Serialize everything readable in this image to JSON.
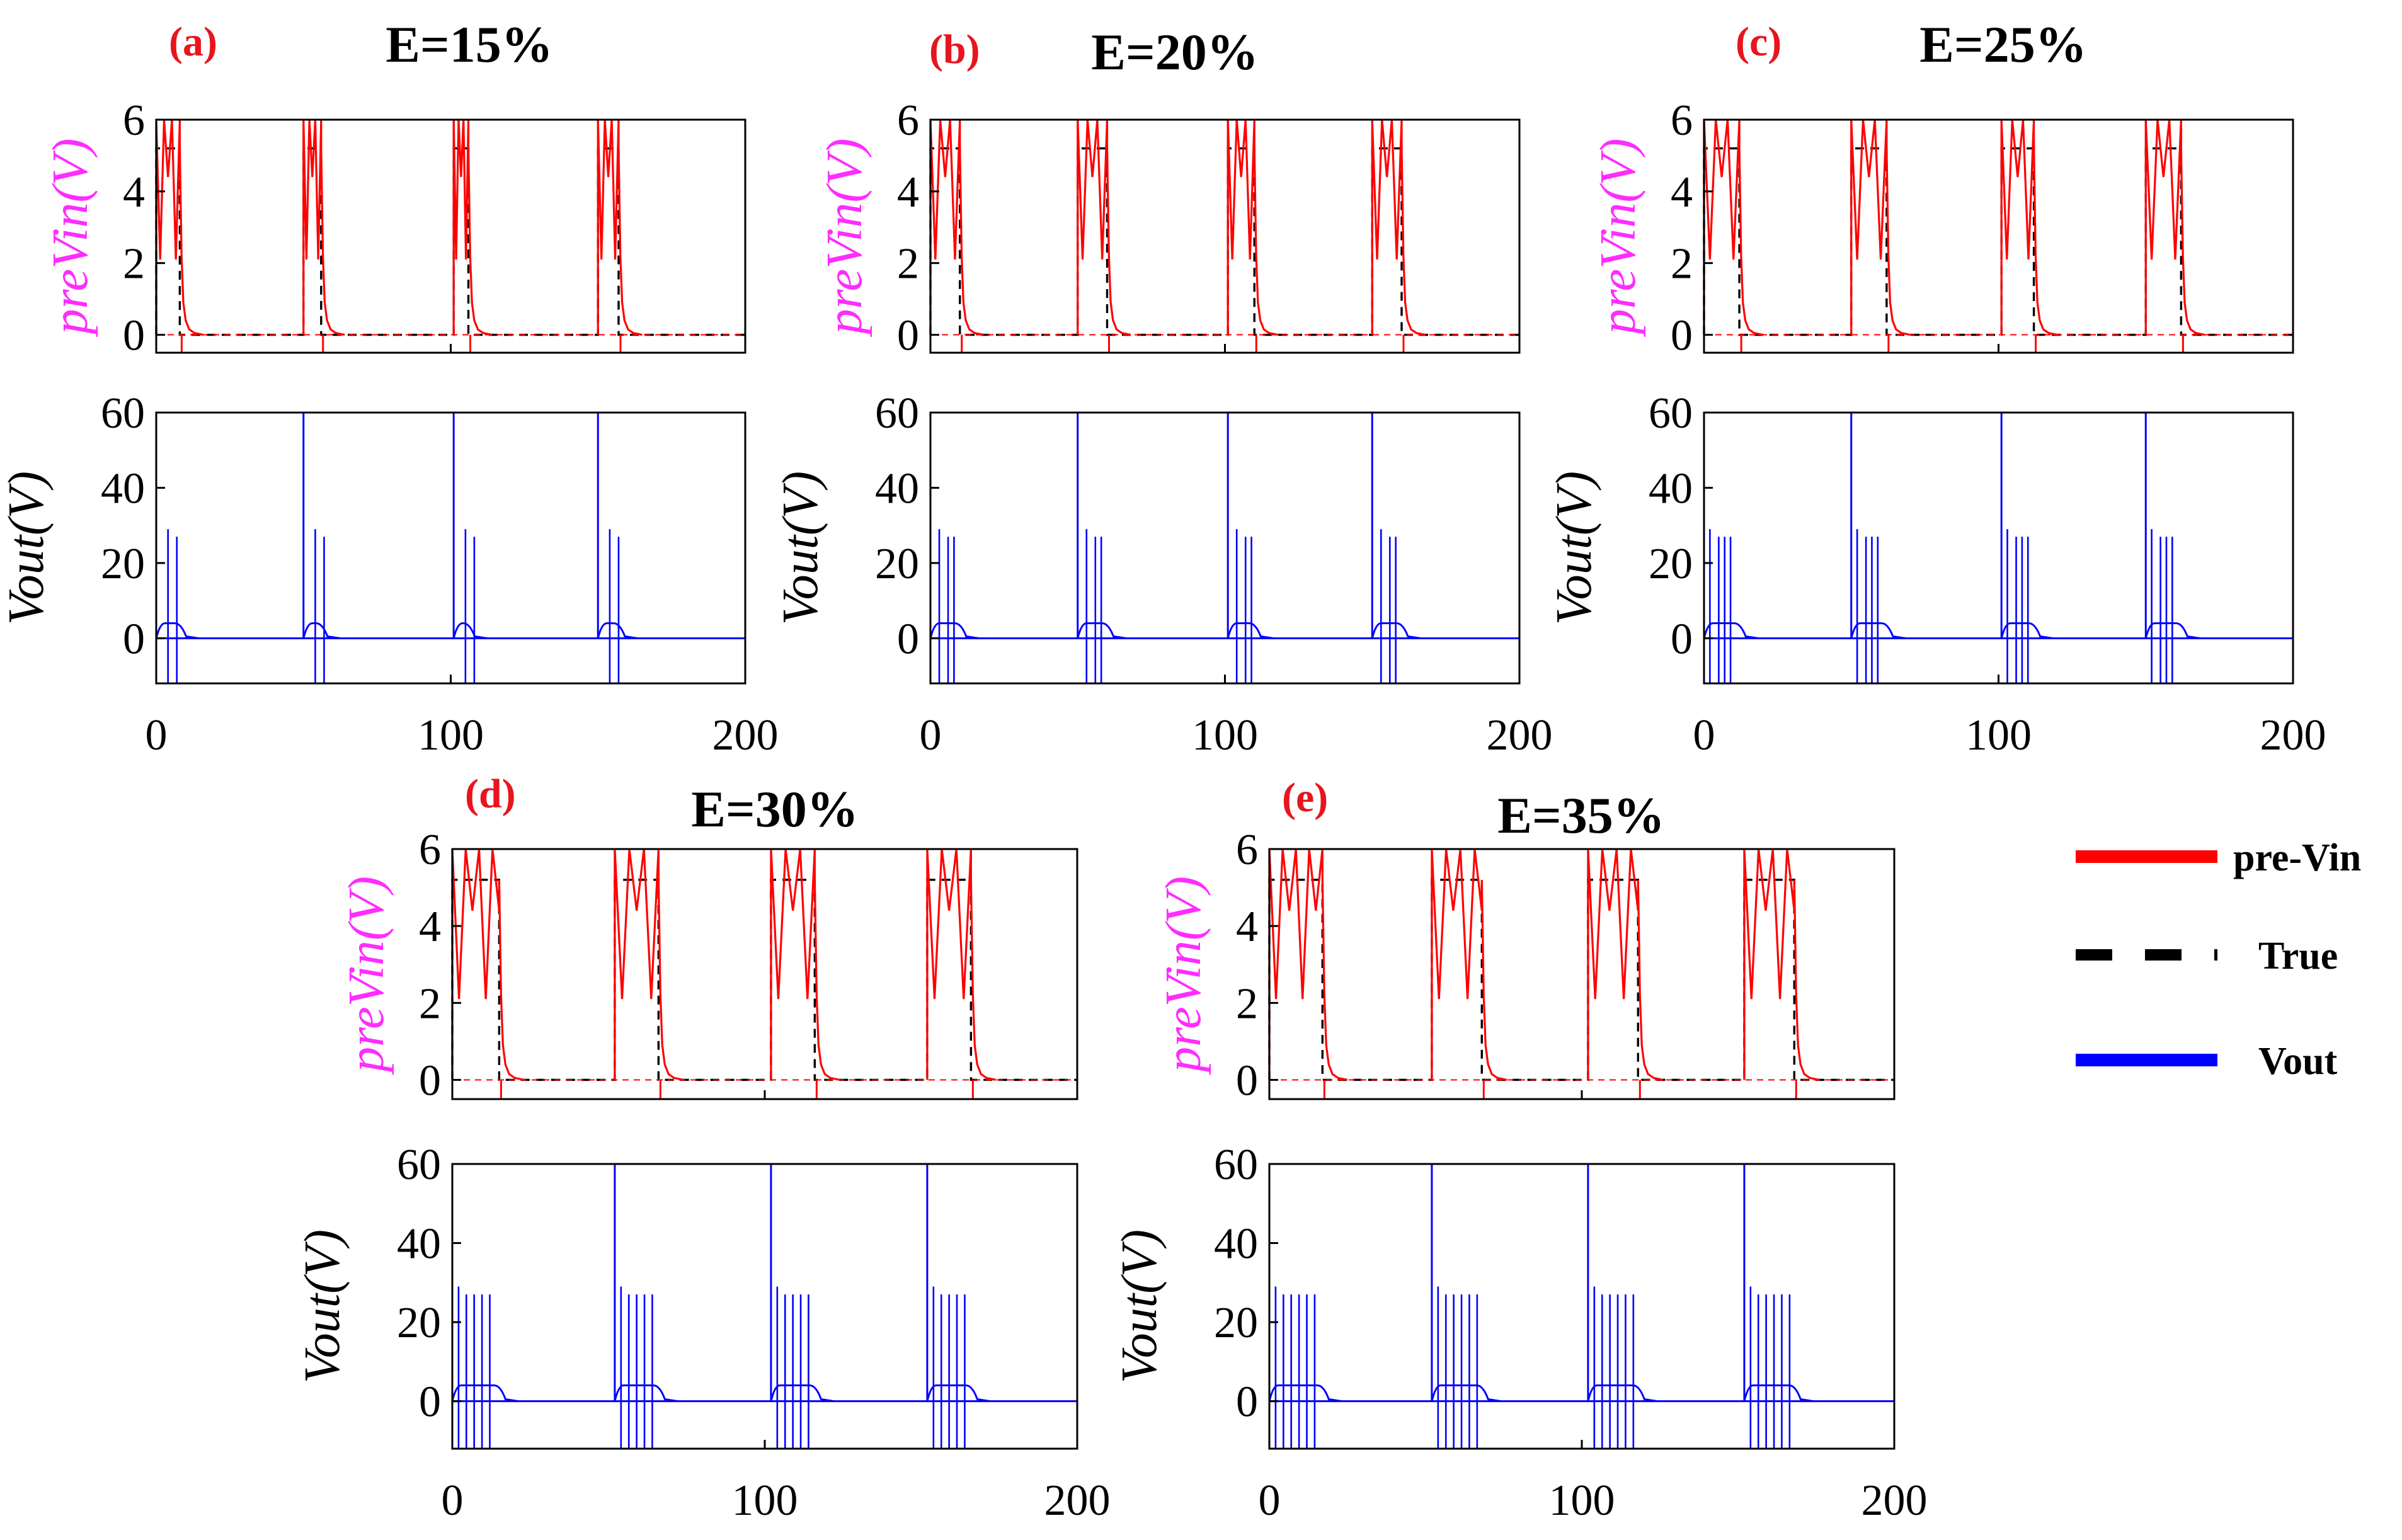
{
  "chart_data": [
    {
      "type": "line",
      "panel": "(a)",
      "title": "E=15%",
      "xlim": [
        0,
        200
      ],
      "xticks": [
        "0",
        "100",
        "200"
      ],
      "spike_offsets": [
        4,
        7
      ],
      "spike_peaks": [
        29,
        27
      ],
      "top": {
        "ylabel": "preVin(V)",
        "ylim": [
          -0.5,
          6
        ],
        "yticks": [
          "0",
          "2",
          "4",
          "6"
        ],
        "series": [
          {
            "name": "pre-Vin",
            "color": "#ff0000",
            "style": "solid"
          },
          {
            "name": "True",
            "color": "#000000",
            "style": "dashed"
          }
        ],
        "high_level": 5.2,
        "low_level": 0,
        "pulses": [
          [
            0,
            8
          ],
          [
            50,
            56
          ],
          [
            101,
            106
          ],
          [
            150,
            157
          ]
        ]
      },
      "bottom": {
        "ylabel": "Vout(V)",
        "ylim": [
          -12,
          60
        ],
        "yticks": [
          "0",
          "20",
          "40",
          "60"
        ],
        "series": [
          {
            "name": "Vout",
            "color": "#0000ff",
            "style": "solid"
          }
        ],
        "baseline": 0,
        "pulse_level": 4,
        "peak_spike": 60,
        "negative_spike": -12
      }
    },
    {
      "type": "line",
      "panel": "(b)",
      "title": "E=20%",
      "xlim": [
        0,
        200
      ],
      "xticks": [
        "0",
        "100",
        "200"
      ],
      "spike_offsets": [
        3,
        6,
        8
      ],
      "spike_peaks": [
        29,
        27,
        27
      ],
      "top": {
        "ylabel": "preVin(V)",
        "ylim": [
          -0.5,
          6
        ],
        "yticks": [
          "0",
          "2",
          "4",
          "6"
        ],
        "series": [
          {
            "name": "pre-Vin",
            "color": "#ff0000",
            "style": "solid"
          },
          {
            "name": "True",
            "color": "#000000",
            "style": "dashed"
          }
        ],
        "high_level": 5.2,
        "low_level": 0,
        "pulses": [
          [
            0,
            10
          ],
          [
            50,
            60
          ],
          [
            101,
            110
          ],
          [
            150,
            160
          ]
        ]
      },
      "bottom": {
        "ylabel": "Vout(V)",
        "ylim": [
          -12,
          60
        ],
        "yticks": [
          "0",
          "20",
          "40",
          "60"
        ],
        "series": [
          {
            "name": "Vout",
            "color": "#0000ff",
            "style": "solid"
          }
        ],
        "baseline": 0,
        "pulse_level": 4,
        "peak_spike": 60,
        "negative_spike": -12
      }
    },
    {
      "type": "line",
      "panel": "(c)",
      "title": "E=25%",
      "xlim": [
        0,
        200
      ],
      "xticks": [
        "0",
        "100",
        "200"
      ],
      "spike_offsets": [
        2,
        5,
        7,
        9
      ],
      "spike_peaks": [
        29,
        27,
        27,
        27
      ],
      "top": {
        "ylabel": "preVin(V)",
        "ylim": [
          -0.5,
          6
        ],
        "yticks": [
          "0",
          "2",
          "4",
          "6"
        ],
        "series": [
          {
            "name": "pre-Vin",
            "color": "#ff0000",
            "style": "solid"
          },
          {
            "name": "True",
            "color": "#000000",
            "style": "dashed"
          }
        ],
        "high_level": 5.2,
        "low_level": 0,
        "pulses": [
          [
            0,
            12
          ],
          [
            50,
            62
          ],
          [
            101,
            112
          ],
          [
            150,
            162
          ]
        ]
      },
      "bottom": {
        "ylabel": "Vout(V)",
        "ylim": [
          -12,
          60
        ],
        "yticks": [
          "0",
          "20",
          "40",
          "60"
        ],
        "series": [
          {
            "name": "Vout",
            "color": "#0000ff",
            "style": "solid"
          }
        ],
        "baseline": 0,
        "pulse_level": 4,
        "peak_spike": 60,
        "negative_spike": -12
      }
    },
    {
      "type": "line",
      "panel": "(d)",
      "title": "E=30%",
      "xlim": [
        0,
        200
      ],
      "xticks": [
        "0",
        "100",
        "200"
      ],
      "spike_offsets": [
        2,
        4.5,
        7,
        9.5,
        12
      ],
      "spike_peaks": [
        29,
        27,
        27,
        27,
        27
      ],
      "top": {
        "ylabel": "preVin(V)",
        "ylim": [
          -0.5,
          6
        ],
        "yticks": [
          "0",
          "2",
          "4",
          "6"
        ],
        "series": [
          {
            "name": "pre-Vin",
            "color": "#ff0000",
            "style": "solid"
          },
          {
            "name": "True",
            "color": "#000000",
            "style": "dashed"
          }
        ],
        "high_level": 5.2,
        "low_level": 0,
        "pulses": [
          [
            0,
            15
          ],
          [
            52,
            66
          ],
          [
            102,
            116
          ],
          [
            152,
            166
          ]
        ]
      },
      "bottom": {
        "ylabel": "Vout(V)",
        "ylim": [
          -12,
          60
        ],
        "yticks": [
          "0",
          "20",
          "40",
          "60"
        ],
        "series": [
          {
            "name": "Vout",
            "color": "#0000ff",
            "style": "solid"
          }
        ],
        "baseline": 0,
        "pulse_level": 4,
        "peak_spike": 60,
        "negative_spike": -12
      }
    },
    {
      "type": "line",
      "panel": "(e)",
      "title": "E=35%",
      "xlim": [
        0,
        200
      ],
      "xticks": [
        "0",
        "100",
        "200"
      ],
      "spike_offsets": [
        2,
        4.5,
        7,
        9.5,
        12,
        14.5
      ],
      "spike_peaks": [
        29,
        27,
        27,
        27,
        27,
        27
      ],
      "top": {
        "ylabel": "preVin(V)",
        "ylim": [
          -0.5,
          6
        ],
        "yticks": [
          "0",
          "2",
          "4",
          "6"
        ],
        "series": [
          {
            "name": "pre-Vin",
            "color": "#ff0000",
            "style": "solid"
          },
          {
            "name": "True",
            "color": "#000000",
            "style": "dashed"
          }
        ],
        "high_level": 5.2,
        "low_level": 0,
        "pulses": [
          [
            0,
            17
          ],
          [
            52,
            68
          ],
          [
            102,
            118
          ],
          [
            152,
            168
          ]
        ]
      },
      "bottom": {
        "ylabel": "Vout(V)",
        "ylim": [
          -12,
          60
        ],
        "yticks": [
          "0",
          "20",
          "40",
          "60"
        ],
        "series": [
          {
            "name": "Vout",
            "color": "#0000ff",
            "style": "solid"
          }
        ],
        "baseline": 0,
        "pulse_level": 4,
        "peak_spike": 60,
        "negative_spike": -12
      }
    }
  ],
  "legend": [
    {
      "label": "pre-Vin",
      "color": "#ff0000",
      "style": "solid"
    },
    {
      "label": "True",
      "color": "#000000",
      "style": "dashed"
    },
    {
      "label": "Vout",
      "color": "#0000ff",
      "style": "solid"
    }
  ],
  "colors": {
    "panel_letter": "#e8141e",
    "top_ylabel": "#ff2cff",
    "axis": "#000000"
  }
}
